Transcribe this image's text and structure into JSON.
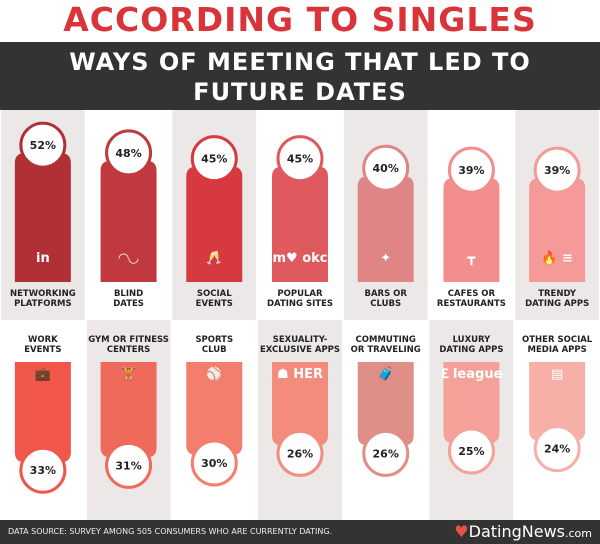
{
  "title": "ACCORDING TO SINGLES",
  "subtitle_line1": "WAYS OF MEETING THAT LED TO",
  "subtitle_line2": "FUTURE DATES",
  "footer": {
    "source": "DATA SOURCE: SURVEY AMONG 505 CONSUMERS WHO ARE CURRENTLY DATING.",
    "brand": "DatingNews",
    "brand_suffix": ".com"
  },
  "chart_data": {
    "type": "bar",
    "unit": "%",
    "rows": [
      {
        "categories": [
          [
            "NETWORKING",
            "PLATFORMS"
          ],
          [
            "BLIND",
            "DATES"
          ],
          [
            "SOCIAL",
            "EVENTS"
          ],
          [
            "POPULAR",
            "DATING SITES"
          ],
          [
            "BARS OR",
            "CLUBS"
          ],
          [
            "CAFES OR",
            "RESTAURANTS"
          ],
          [
            "TRENDY",
            "DATING APPS"
          ]
        ],
        "values": [
          52,
          48,
          45,
          45,
          40,
          39,
          39
        ],
        "icons": [
          "linkedin-icon",
          "mask-icon",
          "champagne-icon",
          "match-okc-icon",
          "disco-ball-icon",
          "cafe-table-icon",
          "tinder-bumble-icon"
        ],
        "icon_text": [
          "in",
          "◠◡",
          "🥂",
          "m♥ okc",
          "✦",
          "┳",
          "🔥 ≡"
        ],
        "colors": [
          "#b03036",
          "#c0393e",
          "#d63a3f",
          "#df5a5e",
          "#e08585",
          "#f28e8e",
          "#f59a98"
        ]
      },
      {
        "categories": [
          [
            "WORK",
            "EVENTS"
          ],
          [
            "GYM OR FITNESS",
            "CENTERS"
          ],
          [
            "SPORTS",
            "CLUB"
          ],
          [
            "SEXUALITY-",
            "EXCLUSIVE APPS"
          ],
          [
            "COMMUTING",
            "OR TRAVELING"
          ],
          [
            "LUXURY",
            "DATING APPS"
          ],
          [
            "OTHER SOCIAL",
            "MEDIA APPS"
          ]
        ],
        "values": [
          33,
          31,
          30,
          26,
          26,
          25,
          24
        ],
        "icons": [
          "briefcase-icon",
          "dumbbell-icon",
          "sports-ball-icon",
          "grindr-her-icon",
          "luggage-icon",
          "raya-league-icon",
          "social-chat-icon"
        ],
        "icon_text": [
          "💼",
          "🏋",
          "⚾",
          "☗ HER",
          "🧳",
          "ℇ league",
          "▤"
        ],
        "colors": [
          "#f0564a",
          "#f06a5c",
          "#f47e6e",
          "#f48c7e",
          "#e08e88",
          "#f4a19a",
          "#f6b0a8"
        ]
      }
    ]
  }
}
